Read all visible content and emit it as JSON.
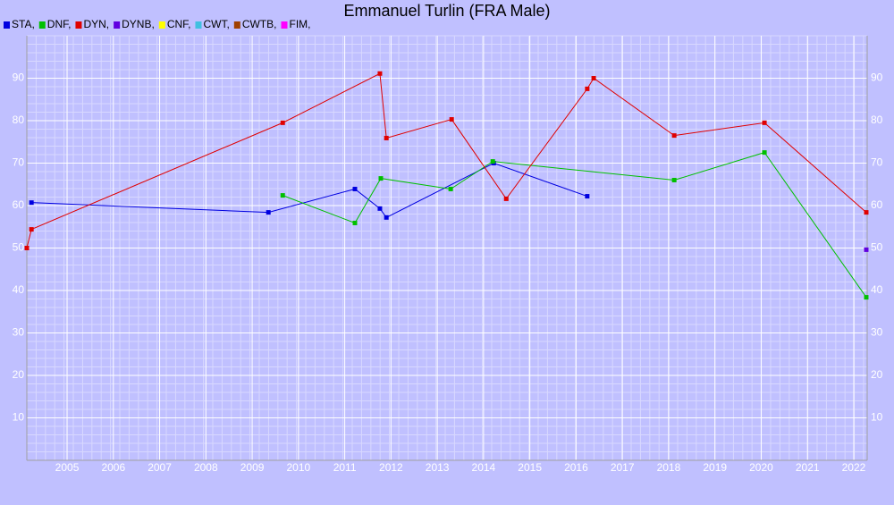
{
  "chart_data": {
    "type": "line",
    "title": "Emmanuel Turlin (FRA Male)",
    "xlim": [
      2004.13,
      2022.29
    ],
    "ylim": [
      0,
      100
    ],
    "xticks": [
      2005,
      2006,
      2007,
      2008,
      2009,
      2010,
      2011,
      2012,
      2013,
      2014,
      2015,
      2016,
      2017,
      2018,
      2019,
      2020,
      2021,
      2022
    ],
    "yticks": [
      10,
      20,
      30,
      40,
      50,
      60,
      70,
      80,
      90
    ],
    "grid": true,
    "series": [
      {
        "name": "STA,",
        "color": "#0000e0",
        "x": [
          2004.23,
          2009.35,
          2011.22,
          2011.76,
          2011.9,
          2014.22,
          2016.24
        ],
        "values": [
          60.7,
          58.4,
          63.9,
          59.3,
          57.2,
          70,
          62.2
        ]
      },
      {
        "name": "DNF,",
        "color": "#00c000",
        "x": [
          2009.66,
          2011.22,
          2011.78,
          2013.29,
          2014.2,
          2018.12,
          2020.07,
          2022.27
        ],
        "values": [
          62.4,
          55.9,
          66.4,
          63.9,
          70.4,
          66,
          72.5,
          38.4
        ]
      },
      {
        "name": "DYN,",
        "color": "#e00000",
        "x": [
          2004.13,
          2004.23,
          2009.66,
          2011.76,
          2011.9,
          2013.31,
          2014.49,
          2016.24,
          2016.38,
          2018.12,
          2020.07,
          2022.27
        ],
        "values": [
          50,
          54.4,
          79.5,
          91.1,
          75.9,
          80.3,
          61.6,
          87.5,
          90,
          76.5,
          79.5,
          58.4
        ]
      },
      {
        "name": "DYNB,",
        "color": "#6000e0",
        "x": [
          2022.27
        ],
        "values": [
          49.6
        ]
      },
      {
        "name": "CNF,",
        "color": "#ffff00",
        "x": [],
        "values": []
      },
      {
        "name": "CWT,",
        "color": "#40c0e0",
        "x": [],
        "values": []
      },
      {
        "name": "CWTB,",
        "color": "#a04000",
        "x": [],
        "values": []
      },
      {
        "name": "FIM,",
        "color": "#ff00ff",
        "x": [],
        "values": []
      }
    ]
  }
}
